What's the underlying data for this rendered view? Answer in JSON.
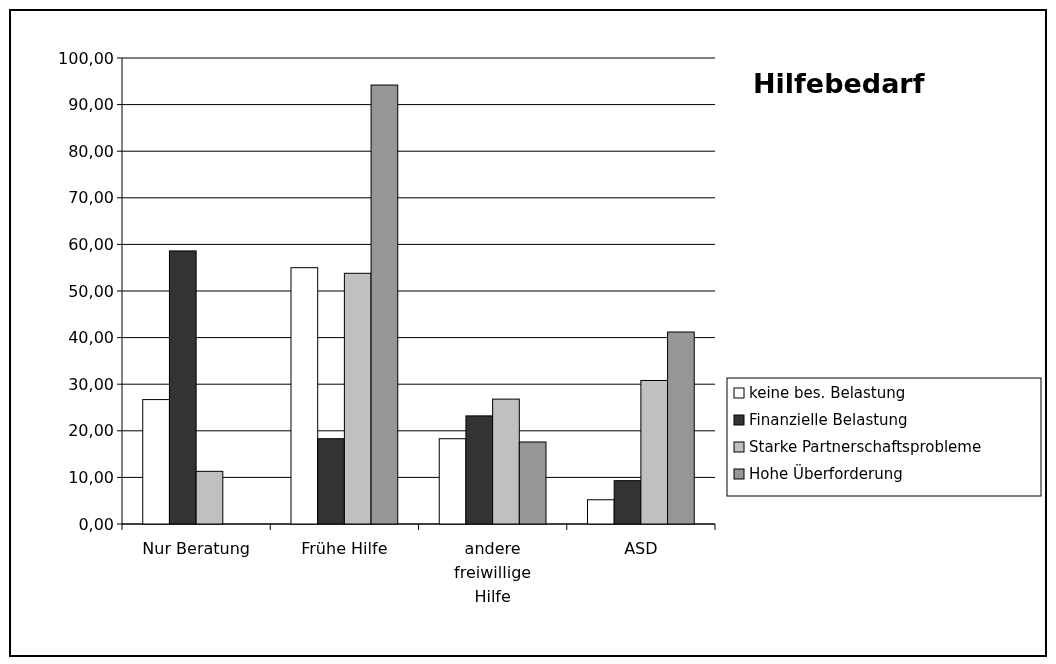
{
  "chart_data": {
    "type": "bar",
    "title": "Hilfebedarf",
    "categories": [
      "Nur Beratung",
      "Frühe Hilfe",
      "andere freiwillige Hilfe",
      "ASD"
    ],
    "series": [
      {
        "name": "keine bes. Belastung",
        "color": "#ffffff",
        "values": [
          26.7,
          55.0,
          18.3,
          5.2
        ]
      },
      {
        "name": "Finanzielle Belastung",
        "color": "#333333",
        "values": [
          58.6,
          18.3,
          23.2,
          9.3
        ]
      },
      {
        "name": "Starke Partnerschaftsprobleme",
        "color": "#c0c0c0",
        "values": [
          11.3,
          53.8,
          26.8,
          30.8
        ]
      },
      {
        "name": "Hohe Überforderung",
        "color": "#969696",
        "values": [
          null,
          94.2,
          17.6,
          41.2
        ]
      }
    ],
    "ylim": [
      0,
      100
    ],
    "yticks": [
      {
        "value": 0,
        "label": "0,00"
      },
      {
        "value": 10,
        "label": "10,00"
      },
      {
        "value": 20,
        "label": "20,00"
      },
      {
        "value": 30,
        "label": "30,00"
      },
      {
        "value": 40,
        "label": "40,00"
      },
      {
        "value": 50,
        "label": "50,00"
      },
      {
        "value": 60,
        "label": "60,00"
      },
      {
        "value": 70,
        "label": "70,00"
      },
      {
        "value": 80,
        "label": "80,00"
      },
      {
        "value": 90,
        "label": "90,00"
      },
      {
        "value": 100,
        "label": "100,00"
      }
    ],
    "grid": "y",
    "legend": "right"
  }
}
